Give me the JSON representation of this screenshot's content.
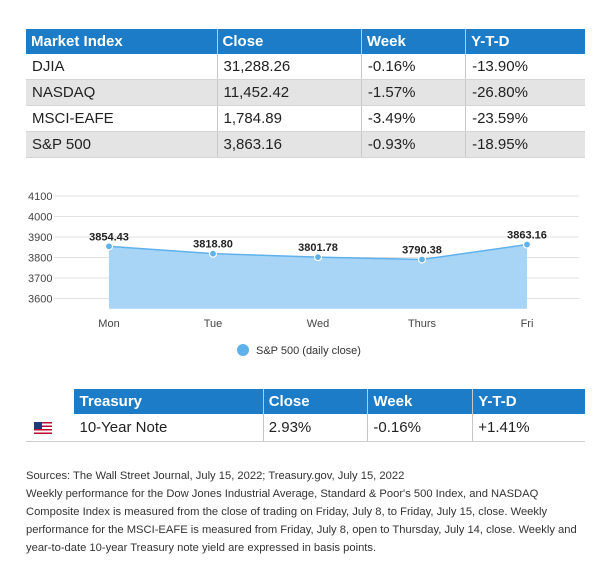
{
  "market_table": {
    "headers": [
      "Market Index",
      "Close",
      "Week",
      "Y-T-D"
    ],
    "rows": [
      [
        "DJIA",
        "31,288.26",
        "-0.16%",
        "-13.90%"
      ],
      [
        "NASDAQ",
        "11,452.42",
        "-1.57%",
        "-26.80%"
      ],
      [
        "MSCI-EAFE",
        "1,784.89",
        "-3.49%",
        "-23.59%"
      ],
      [
        "S&P 500",
        "3,863.16",
        "-0.93%",
        "-18.95%"
      ]
    ]
  },
  "chart_data": {
    "type": "area",
    "categories": [
      "Mon",
      "Tue",
      "Wed",
      "Thurs",
      "Fri"
    ],
    "series": [
      {
        "name": "S&P 500 (daily close)",
        "values": [
          3854.43,
          3818.8,
          3801.78,
          3790.38,
          3863.16
        ]
      }
    ],
    "data_labels": [
      "3854.43",
      "3818.80",
      "3801.78",
      "3790.38",
      "3863.16"
    ],
    "y_ticks": [
      "4100",
      "4000",
      "3900",
      "3800",
      "3700",
      "3600"
    ],
    "ylim": [
      3550,
      4100
    ],
    "grid": true,
    "legend_position": "bottom",
    "colors": {
      "fill": "#a8d4f5",
      "line": "#5fb1ec",
      "marker": "#5fb1ec"
    },
    "title": "",
    "xlabel": "",
    "ylabel": ""
  },
  "treasury_table": {
    "headers": [
      "",
      "Treasury",
      "Close",
      "Week",
      "Y-T-D"
    ],
    "rows": [
      {
        "flag": "us-flag-icon",
        "name": "10-Year Note",
        "close": "2.93%",
        "week": "-0.16%",
        "ytd": "+1.41%"
      }
    ]
  },
  "footer": {
    "lines": [
      "Sources: The Wall Street Journal, July 15, 2022; Treasury.gov, July 15, 2022",
      "Weekly performance for the Dow Jones Industrial Average, Standard & Poor's 500 Index, and NASDAQ",
      "Composite Index is measured from the close of trading on Friday, July 8, to Friday, July 15, close. Weekly",
      "performance for the MSCI-EAFE is measured from Friday, July 8, open to Thursday, July 14, close. Weekly and",
      "year-to-date 10-year Treasury note yield are expressed in basis points."
    ]
  },
  "colors": {
    "header_blue": "#1c7cc8",
    "row_stripe": "#e4e4e4"
  }
}
